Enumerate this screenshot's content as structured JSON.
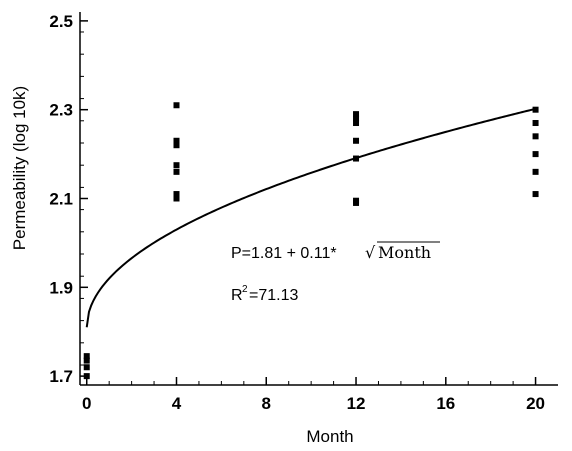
{
  "chart_data": {
    "type": "scatter",
    "title": "",
    "xlabel": "Month",
    "ylabel": "Permeability (log 10k)",
    "xlim": [
      -0.3,
      21
    ],
    "ylim": [
      1.68,
      2.52
    ],
    "x_ticks": [
      "0",
      "4",
      "8",
      "12",
      "16",
      "20"
    ],
    "x_tick_values": [
      0,
      4,
      8,
      12,
      16,
      20
    ],
    "y_ticks": [
      "1.7",
      "1.9",
      "2.1",
      "2.3",
      "2.5"
    ],
    "y_tick_values": [
      1.7,
      1.9,
      2.1,
      2.3,
      2.5
    ],
    "grid": false,
    "series": [
      {
        "kind": "points",
        "color": "#000000",
        "points": [
          [
            0,
            1.7
          ],
          [
            0,
            1.72
          ],
          [
            0,
            1.735
          ],
          [
            0,
            1.745
          ],
          [
            4,
            2.1
          ],
          [
            4,
            2.11
          ],
          [
            4,
            2.16
          ],
          [
            4,
            2.175
          ],
          [
            4,
            2.22
          ],
          [
            4,
            2.23
          ],
          [
            4,
            2.31
          ],
          [
            12,
            2.09
          ],
          [
            12,
            2.095
          ],
          [
            12,
            2.19
          ],
          [
            12,
            2.23
          ],
          [
            12,
            2.27
          ],
          [
            12,
            2.28
          ],
          [
            12,
            2.29
          ],
          [
            20,
            2.11
          ],
          [
            20,
            2.16
          ],
          [
            20,
            2.2
          ],
          [
            20,
            2.24
          ],
          [
            20,
            2.27
          ],
          [
            20,
            2.3
          ]
        ]
      },
      {
        "kind": "fit",
        "color": "#000000",
        "intercept": 1.81,
        "coef": 0.11,
        "x_range": [
          0,
          20
        ]
      }
    ],
    "annotations": {
      "equation_prefix": "P=1.81 + 0.11*",
      "equation_sqrt_symbol": "√",
      "equation_sqrt_arg": "Month",
      "r2_prefix": "R",
      "r2_sup": "2",
      "r2_value": "=71.13"
    }
  }
}
